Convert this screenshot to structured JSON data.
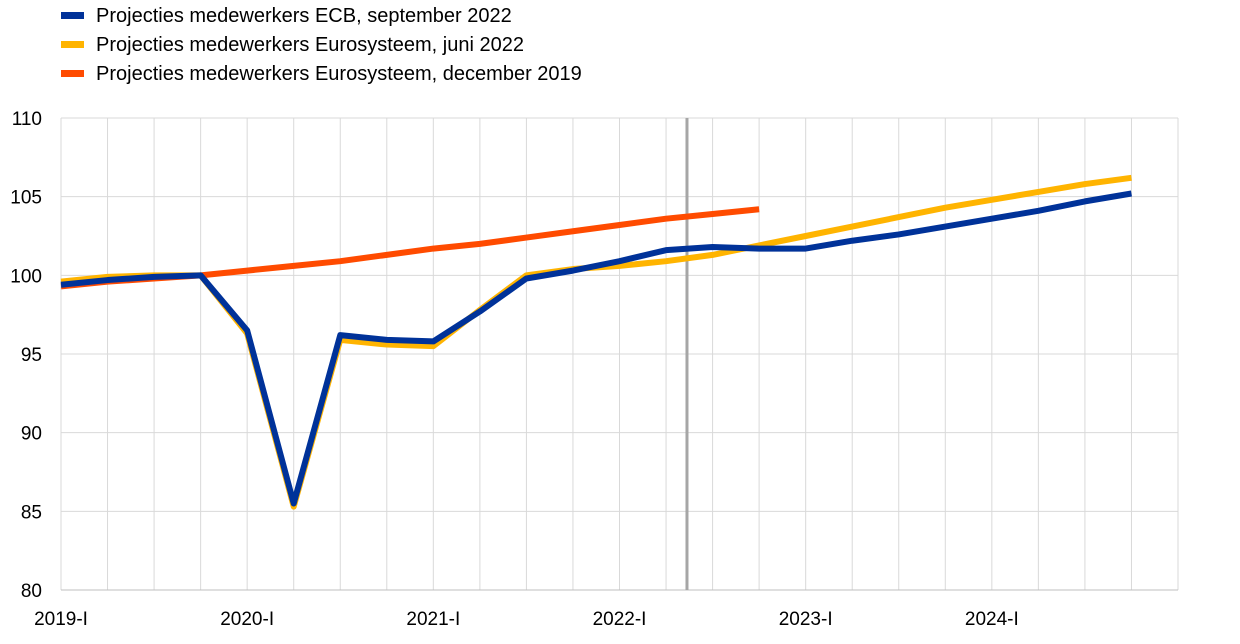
{
  "chart_data": {
    "type": "line",
    "legend_position": "top-left",
    "grid": true,
    "ylim": [
      80,
      110
    ],
    "y_ticks": [
      80,
      85,
      90,
      95,
      100,
      105,
      110
    ],
    "x_tick_labels": [
      "2019-I",
      "2020-I",
      "2021-I",
      "2022-I",
      "2023-I",
      "2024-I"
    ],
    "quarters": [
      "2019-Q1",
      "2019-Q2",
      "2019-Q3",
      "2019-Q4",
      "2020-Q1",
      "2020-Q2",
      "2020-Q3",
      "2020-Q4",
      "2021-Q1",
      "2021-Q2",
      "2021-Q3",
      "2021-Q4",
      "2022-Q1",
      "2022-Q2",
      "2022-Q3",
      "2022-Q4",
      "2023-Q1",
      "2023-Q2",
      "2023-Q3",
      "2023-Q4",
      "2024-Q1",
      "2024-Q2",
      "2024-Q3",
      "2024-Q4"
    ],
    "projection_marker": "2022-Q2",
    "series": [
      {
        "name": "Projecties medewerkers Eurosysteem, juni 2022",
        "color": "#ffb400",
        "values": [
          99.6,
          99.9,
          100.0,
          100.0,
          96.3,
          85.3,
          95.9,
          95.6,
          95.5,
          97.8,
          100.0,
          100.4,
          100.6,
          100.9,
          101.3,
          101.9,
          102.5,
          103.1,
          103.7,
          104.3,
          104.8,
          105.3,
          105.8,
          106.2
        ]
      },
      {
        "name": "Projecties medewerkers Eurosysteem, december 2019",
        "color": "#ff4b00",
        "values": [
          99.3,
          99.6,
          99.8,
          100.0,
          100.3,
          100.6,
          100.9,
          101.3,
          101.7,
          102.0,
          102.4,
          102.8,
          103.2,
          103.6,
          103.9,
          104.2
        ]
      },
      {
        "name": "Projecties medewerkers ECB, september 2022",
        "color": "#003299",
        "values": [
          99.4,
          99.7,
          99.9,
          100.0,
          96.5,
          85.5,
          96.2,
          95.9,
          95.8,
          97.7,
          99.8,
          100.3,
          100.9,
          101.6,
          101.8,
          101.7,
          101.7,
          102.2,
          102.6,
          103.1,
          103.6,
          104.1,
          104.7,
          105.2
        ]
      }
    ],
    "legend_order": [
      2,
      0,
      1
    ]
  }
}
